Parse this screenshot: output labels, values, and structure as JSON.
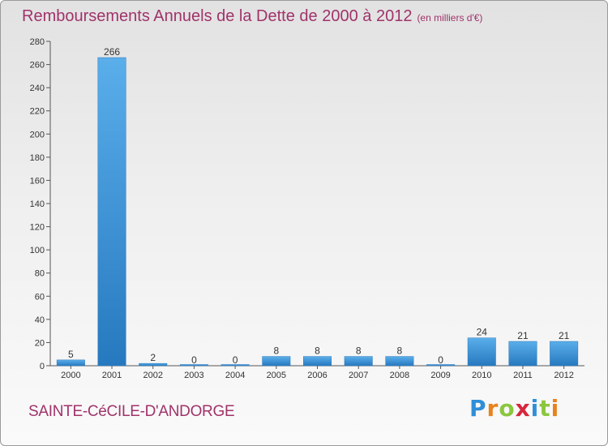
{
  "header": {
    "title": "Remboursements Annuels de la Dette de 2000 à 2012",
    "unit": "(en milliers d'€)"
  },
  "footer": {
    "commune": "SAINTE-CéCILE-D'ANDORGE",
    "logo_letters": [
      "P",
      "r",
      "o",
      "x",
      "i",
      "t",
      "i"
    ],
    "logo_colors": [
      "#2f8fd8",
      "#e8831c",
      "#8cc63f",
      "#d7263d",
      "#2f8fd8",
      "#8cc63f",
      "#e8831c"
    ]
  },
  "chart_data": {
    "type": "bar",
    "title": "Remboursements Annuels de la Dette de 2000 à 2012",
    "categories": [
      "2000",
      "2001",
      "2002",
      "2003",
      "2004",
      "2005",
      "2006",
      "2007",
      "2008",
      "2009",
      "2010",
      "2011",
      "2012"
    ],
    "values": [
      5,
      266,
      2,
      0,
      0,
      8,
      8,
      8,
      8,
      0,
      24,
      21,
      21
    ],
    "data_labels": [
      "5",
      "266",
      "2",
      "0",
      "0",
      "8",
      "8",
      "8",
      "8",
      "0",
      "24",
      "21",
      "21"
    ],
    "ylim": [
      0,
      280
    ],
    "yticks": [
      0,
      20,
      40,
      60,
      80,
      100,
      120,
      140,
      160,
      180,
      200,
      220,
      240,
      260,
      280
    ],
    "grid": false,
    "bar_color": "#3f97dc"
  }
}
